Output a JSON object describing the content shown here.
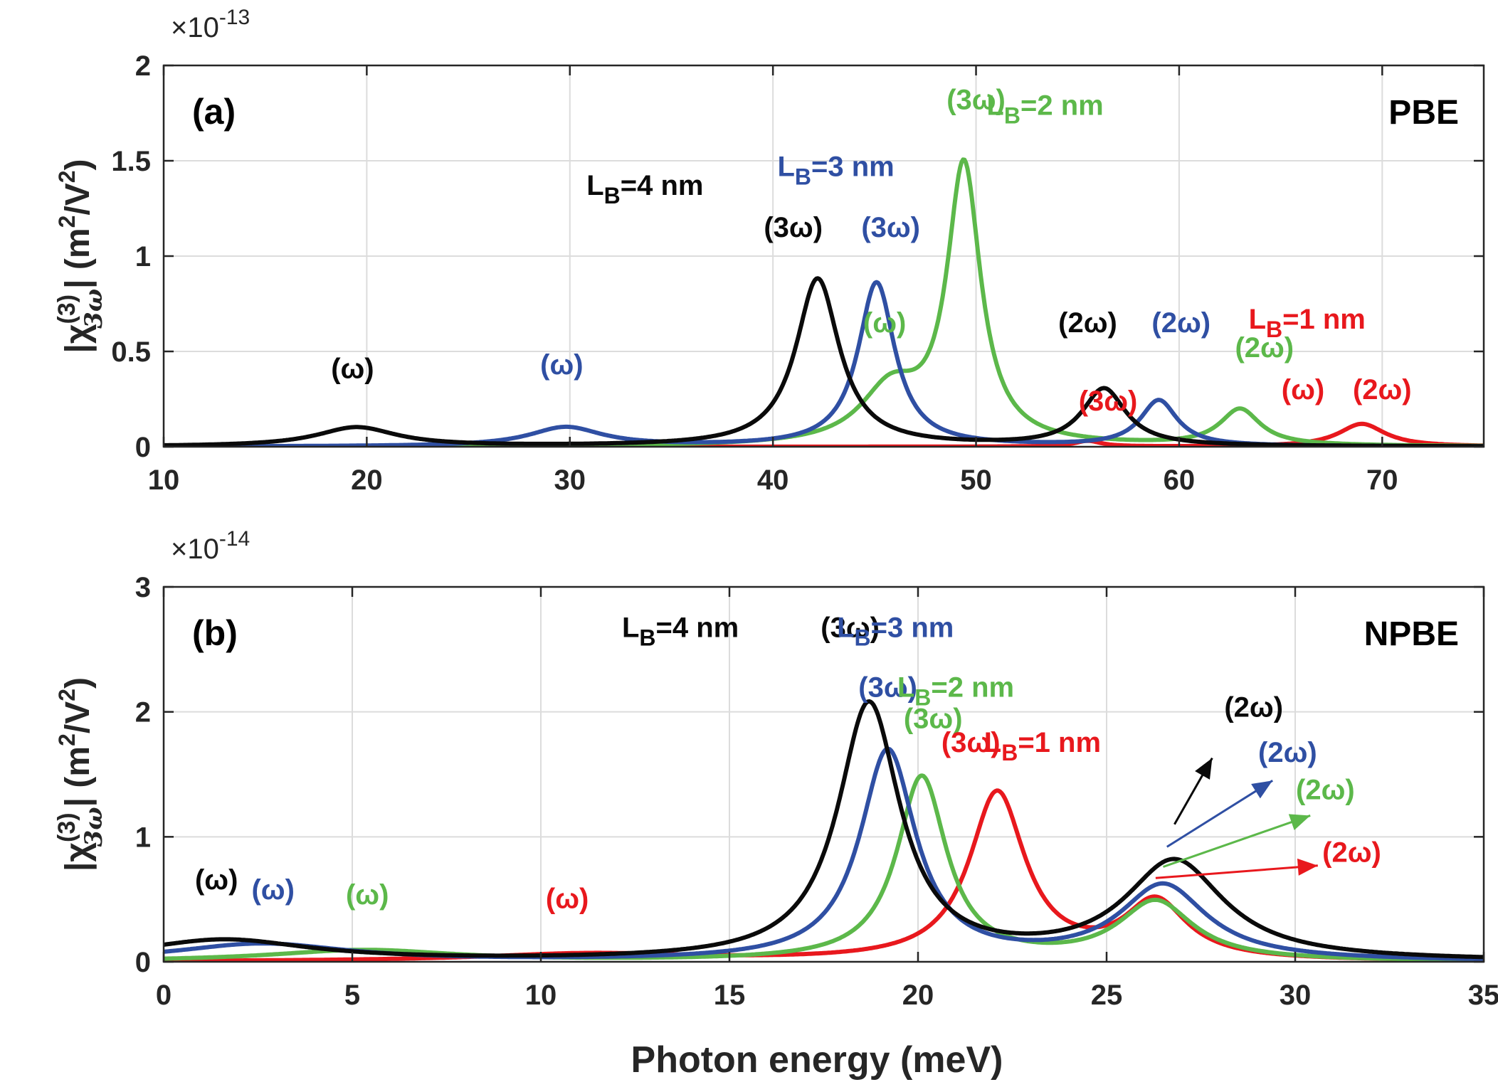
{
  "figure": {
    "xlabel": "Photon energy (meV)",
    "colors": {
      "LB1": "#e8181d",
      "LB2": "#5cb84a",
      "LB3": "#2f4fa3",
      "LB4": "#0a0a0a"
    }
  },
  "chart_data": [
    {
      "panel": "(a)",
      "method": "PBE",
      "type": "line",
      "xlabel": "Photon energy (meV)",
      "ylabel_main": "|χ",
      "ylabel_sup": "(3)",
      "ylabel_sub": "3ω",
      "ylabel_rest": "| (m",
      "ylabel_unit_sup": "2",
      "ylabel_unit_mid": "/V",
      "ylabel_unit_end": ")",
      "multiplier_base": "×10",
      "multiplier_exp": "-13",
      "xlim": [
        10,
        75
      ],
      "ylim": [
        0,
        2
      ],
      "xticks": [
        10,
        20,
        30,
        40,
        50,
        60,
        70
      ],
      "yticks": [
        0,
        0.5,
        1,
        1.5,
        2
      ],
      "ytick_labels": [
        "0",
        "0.5",
        "1",
        "1.5",
        "2"
      ],
      "grid": true,
      "series": [
        {
          "name": "LB=1 nm",
          "color": "#e8181d",
          "baseline": 0,
          "peaks": [
            {
              "x": 55.5,
              "amp": 0.03,
              "w": 0.8
            },
            {
              "x": 69.0,
              "amp": 0.12,
              "w": 1.4
            }
          ]
        },
        {
          "name": "LB=2 nm",
          "color": "#5cb84a",
          "baseline": 0,
          "peaks": [
            {
              "x": 45.8,
              "amp": 0.28,
              "w": 1.8
            },
            {
              "x": 49.4,
              "amp": 1.45,
              "w": 1.0
            },
            {
              "x": 63.0,
              "amp": 0.19,
              "w": 1.2
            }
          ]
        },
        {
          "name": "LB=3 nm",
          "color": "#2f4fa3",
          "baseline": 0,
          "peaks": [
            {
              "x": 29.8,
              "amp": 0.1,
              "w": 2.2
            },
            {
              "x": 45.1,
              "amp": 0.86,
              "w": 1.1
            },
            {
              "x": 59.0,
              "amp": 0.24,
              "w": 1.1
            }
          ]
        },
        {
          "name": "LB=4 nm",
          "color": "#0a0a0a",
          "baseline": 0,
          "peaks": [
            {
              "x": 19.5,
              "amp": 0.1,
              "w": 2.4
            },
            {
              "x": 42.2,
              "amp": 0.88,
              "w": 1.3
            },
            {
              "x": 56.3,
              "amp": 0.3,
              "w": 1.3
            }
          ]
        }
      ],
      "annotations": [
        {
          "label": "(ω)",
          "color": "#0a0a0a",
          "x": 19.3,
          "y": 0.36
        },
        {
          "label": "(ω)",
          "color": "#2f4fa3",
          "x": 29.6,
          "y": 0.38
        },
        {
          "label": "(3ω)",
          "color": "#0a0a0a",
          "x": 41.0,
          "y": 1.1
        },
        {
          "label": "(3ω)",
          "color": "#2f4fa3",
          "x": 45.8,
          "y": 1.1
        },
        {
          "label": "(ω)",
          "color": "#5cb84a",
          "x": 45.5,
          "y": 0.6
        },
        {
          "label": "(3ω)",
          "color": "#5cb84a",
          "x": 50.0,
          "y": 1.77
        },
        {
          "label": "(2ω)",
          "color": "#0a0a0a",
          "x": 55.5,
          "y": 0.6
        },
        {
          "label": "(2ω)",
          "color": "#2f4fa3",
          "x": 60.1,
          "y": 0.6
        },
        {
          "label": "(2ω)",
          "color": "#5cb84a",
          "x": 64.2,
          "y": 0.47
        },
        {
          "label": "(3ω)",
          "color": "#e8181d",
          "x": 56.5,
          "y": 0.19
        },
        {
          "label": "(ω)",
          "color": "#e8181d",
          "x": 66.1,
          "y": 0.25
        },
        {
          "label": "(2ω)",
          "color": "#e8181d",
          "x": 70.0,
          "y": 0.25
        }
      ],
      "lb_labels": [
        {
          "text": "L",
          "sub": "B",
          "rest": "=4 nm",
          "color": "#0a0a0a",
          "x": 33.7,
          "y": 1.32
        },
        {
          "text": "L",
          "sub": "B",
          "rest": "=3 nm",
          "color": "#2f4fa3",
          "x": 43.1,
          "y": 1.42
        },
        {
          "text": "L",
          "sub": "B",
          "rest": "=2 nm",
          "color": "#5cb84a",
          "x": 53.4,
          "y": 1.74
        },
        {
          "text": "L",
          "sub": "B",
          "rest": "=1 nm",
          "color": "#e8181d",
          "x": 66.3,
          "y": 0.62
        }
      ]
    },
    {
      "panel": "(b)",
      "method": "NPBE",
      "type": "line",
      "xlabel": "Photon energy (meV)",
      "ylabel_main": "|χ",
      "ylabel_sup": "(3)",
      "ylabel_sub": "3ω",
      "ylabel_rest": "| (m",
      "ylabel_unit_sup": "2",
      "ylabel_unit_mid": "/V",
      "ylabel_unit_end": ")",
      "multiplier_base": "×10",
      "multiplier_exp": "-14",
      "xlim": [
        0,
        35
      ],
      "ylim": [
        0,
        3
      ],
      "xticks": [
        0,
        5,
        10,
        15,
        20,
        25,
        30,
        35
      ],
      "yticks": [
        0,
        1,
        2,
        3
      ],
      "ytick_labels": [
        "0",
        "1",
        "2",
        "3"
      ],
      "grid": true,
      "series": [
        {
          "name": "LB=1 nm",
          "color": "#e8181d",
          "baseline": 0,
          "peaks": [
            {
              "x": 11.3,
              "amp": 0.06,
              "w": 3.5
            },
            {
              "x": 22.1,
              "amp": 1.34,
              "w": 0.9
            },
            {
              "x": 26.3,
              "amp": 0.46,
              "w": 1.0
            }
          ]
        },
        {
          "name": "LB=2 nm",
          "color": "#5cb84a",
          "baseline": 0,
          "peaks": [
            {
              "x": 5.3,
              "amp": 0.09,
              "w": 3.0
            },
            {
              "x": 20.1,
              "amp": 1.47,
              "w": 0.8
            },
            {
              "x": 26.3,
              "amp": 0.47,
              "w": 1.2
            }
          ]
        },
        {
          "name": "LB=3 nm",
          "color": "#2f4fa3",
          "baseline": 0,
          "peaks": [
            {
              "x": 2.6,
              "amp": 0.14,
              "w": 2.8
            },
            {
              "x": 19.2,
              "amp": 1.68,
              "w": 0.9
            },
            {
              "x": 26.5,
              "amp": 0.6,
              "w": 1.4
            }
          ]
        },
        {
          "name": "LB=4 nm",
          "color": "#0a0a0a",
          "baseline": 0,
          "peaks": [
            {
              "x": 1.6,
              "amp": 0.17,
              "w": 2.8
            },
            {
              "x": 18.7,
              "amp": 2.05,
              "w": 1.0
            },
            {
              "x": 26.8,
              "amp": 0.79,
              "w": 1.6
            }
          ]
        }
      ],
      "annotations": [
        {
          "label": "(ω)",
          "color": "#0a0a0a",
          "x": 1.4,
          "y": 0.58
        },
        {
          "label": "(ω)",
          "color": "#2f4fa3",
          "x": 2.9,
          "y": 0.5
        },
        {
          "label": "(ω)",
          "color": "#5cb84a",
          "x": 5.4,
          "y": 0.46
        },
        {
          "label": "(ω)",
          "color": "#e8181d",
          "x": 10.7,
          "y": 0.43
        },
        {
          "label": "(3ω)",
          "color": "#0a0a0a",
          "x": 18.2,
          "y": 2.6
        },
        {
          "label": "(3ω)",
          "color": "#2f4fa3",
          "x": 19.2,
          "y": 2.12
        },
        {
          "label": "(3ω)",
          "color": "#5cb84a",
          "x": 20.4,
          "y": 1.87
        },
        {
          "label": "(3ω)",
          "color": "#e8181d",
          "x": 21.4,
          "y": 1.68
        },
        {
          "label": "(2ω)",
          "color": "#0a0a0a",
          "x": 28.9,
          "y": 1.96
        },
        {
          "label": "(2ω)",
          "color": "#2f4fa3",
          "x": 29.8,
          "y": 1.6
        },
        {
          "label": "(2ω)",
          "color": "#5cb84a",
          "x": 30.8,
          "y": 1.3
        },
        {
          "label": "(2ω)",
          "color": "#e8181d",
          "x": 31.5,
          "y": 0.8
        }
      ],
      "lb_labels": [
        {
          "text": "L",
          "sub": "B",
          "rest": "=4 nm",
          "color": "#0a0a0a",
          "x": 13.7,
          "y": 2.6
        },
        {
          "text": "L",
          "sub": "B",
          "rest": "=3 nm",
          "color": "#2f4fa3",
          "x": 19.4,
          "y": 2.6
        },
        {
          "text": "L",
          "sub": "B",
          "rest": "=2 nm",
          "color": "#5cb84a",
          "x": 21.0,
          "y": 2.12
        },
        {
          "text": "L",
          "sub": "B",
          "rest": "=1 nm",
          "color": "#e8181d",
          "x": 23.3,
          "y": 1.68
        }
      ],
      "arrows": [
        {
          "color": "#0a0a0a",
          "from": [
            26.8,
            1.1
          ],
          "to": [
            27.8,
            1.63
          ]
        },
        {
          "color": "#2f4fa3",
          "from": [
            26.6,
            0.92
          ],
          "to": [
            29.4,
            1.45
          ]
        },
        {
          "color": "#5cb84a",
          "from": [
            26.5,
            0.76
          ],
          "to": [
            30.4,
            1.17
          ]
        },
        {
          "color": "#e8181d",
          "from": [
            26.3,
            0.67
          ],
          "to": [
            30.6,
            0.77
          ]
        }
      ]
    }
  ]
}
